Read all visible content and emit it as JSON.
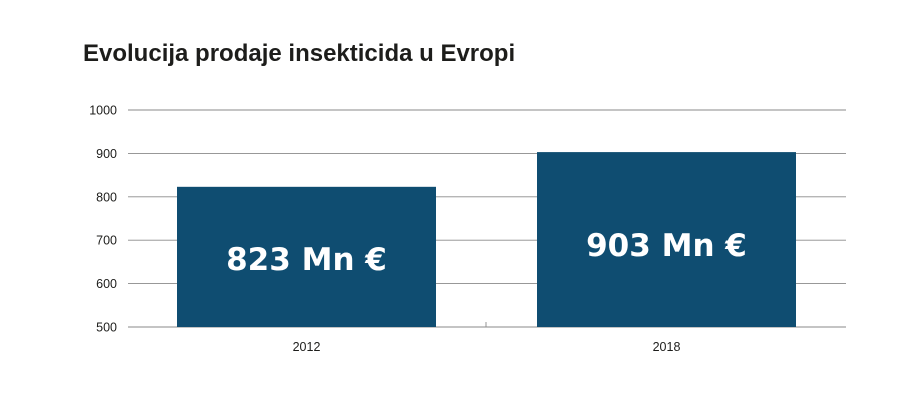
{
  "title": "Evolucija prodaje insekticida u Evropi",
  "colors": {
    "bar": "#0f4d71",
    "gridline": "#8a8a8a",
    "text": "#1d1d1b"
  },
  "chart_data": {
    "type": "bar",
    "title": "Evolucija prodaje insekticida u Evropi",
    "categories": [
      "2012",
      "2018"
    ],
    "values": [
      823,
      903
    ],
    "data_labels": [
      "823 Mn €",
      "903 Mn €"
    ],
    "yticks": [
      "500",
      "600",
      "700",
      "800",
      "900",
      "1000"
    ],
    "ylim": [
      500,
      1000
    ],
    "xlabel": "",
    "ylabel": "",
    "grid": true,
    "legend": "none"
  }
}
